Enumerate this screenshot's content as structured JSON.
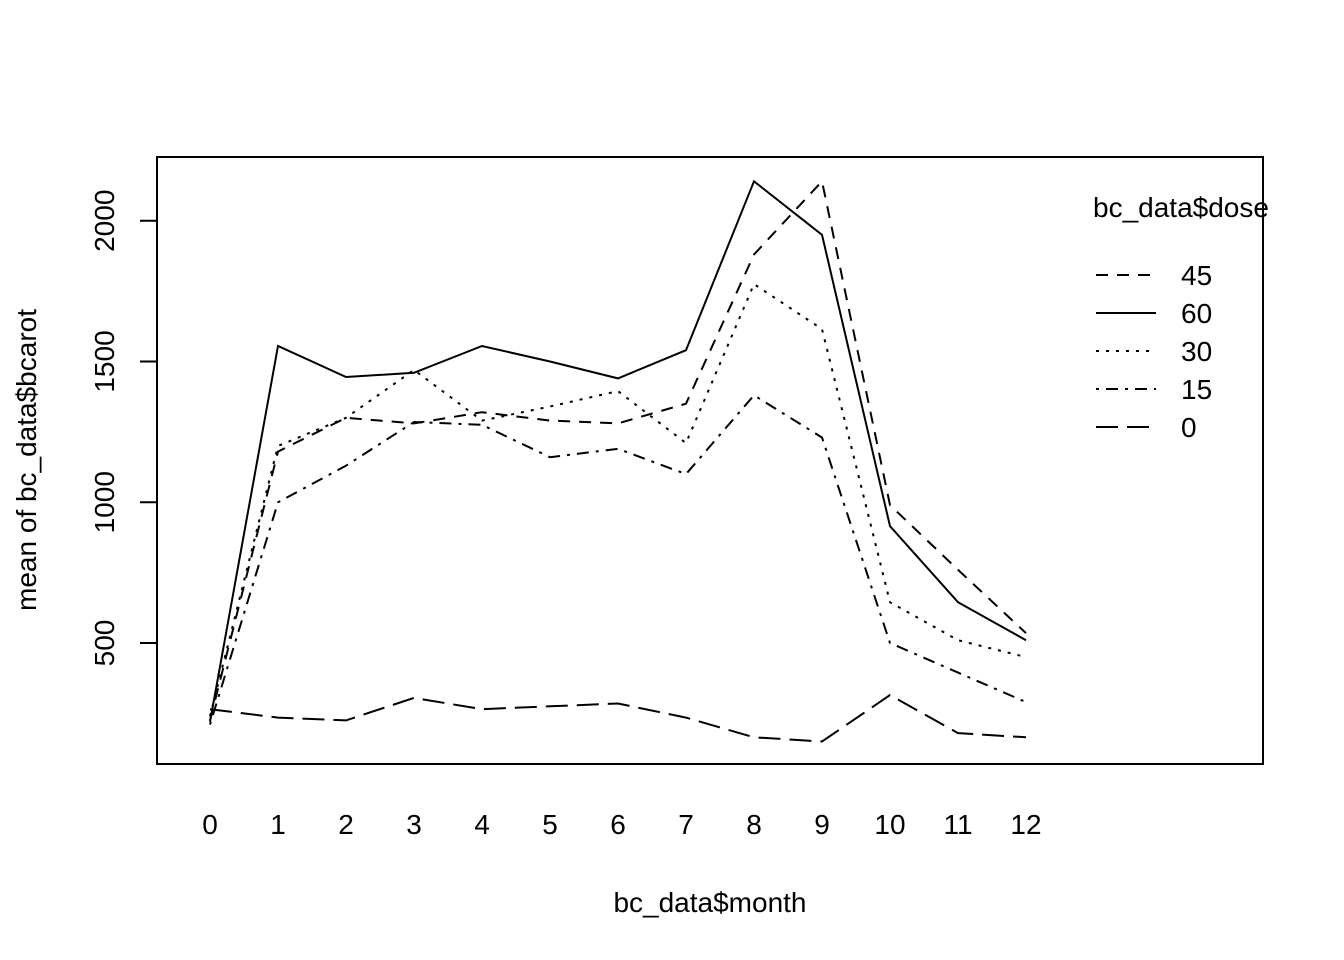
{
  "chart_data": {
    "type": "line",
    "title": "",
    "xlabel": "bc_data$month",
    "ylabel": "mean of  bc_data$bcarot",
    "x": [
      "0",
      "1",
      "2",
      "3",
      "4",
      "5",
      "6",
      "7",
      "8",
      "9",
      "10",
      "11",
      "12"
    ],
    "y_ticks": [
      "500",
      "1000",
      "1500",
      "2000"
    ],
    "ylim": [
      130,
      2280
    ],
    "grid": false,
    "legend": {
      "title": "bc_data$dose",
      "placement": "top-right"
    },
    "series": [
      {
        "name": "45",
        "line_style": "dashed",
        "values": [
          225,
          1180,
          1300,
          1280,
          1320,
          1290,
          1280,
          1350,
          1880,
          2140,
          990,
          760,
          535
        ]
      },
      {
        "name": "60",
        "line_style": "solid",
        "values": [
          220,
          1555,
          1445,
          1460,
          1555,
          1500,
          1440,
          1540,
          2140,
          1950,
          915,
          645,
          510
        ]
      },
      {
        "name": "30",
        "line_style": "dotted",
        "values": [
          240,
          1200,
          1300,
          1470,
          1290,
          1340,
          1395,
          1210,
          1775,
          1615,
          645,
          510,
          450
        ]
      },
      {
        "name": "15",
        "line_style": "dotdash",
        "values": [
          210,
          1000,
          1130,
          1285,
          1275,
          1160,
          1190,
          1100,
          1380,
          1230,
          500,
          395,
          290
        ]
      },
      {
        "name": "0",
        "line_style": "longdash",
        "values": [
          265,
          235,
          225,
          305,
          265,
          275,
          285,
          235,
          165,
          150,
          315,
          180,
          165
        ]
      }
    ]
  }
}
